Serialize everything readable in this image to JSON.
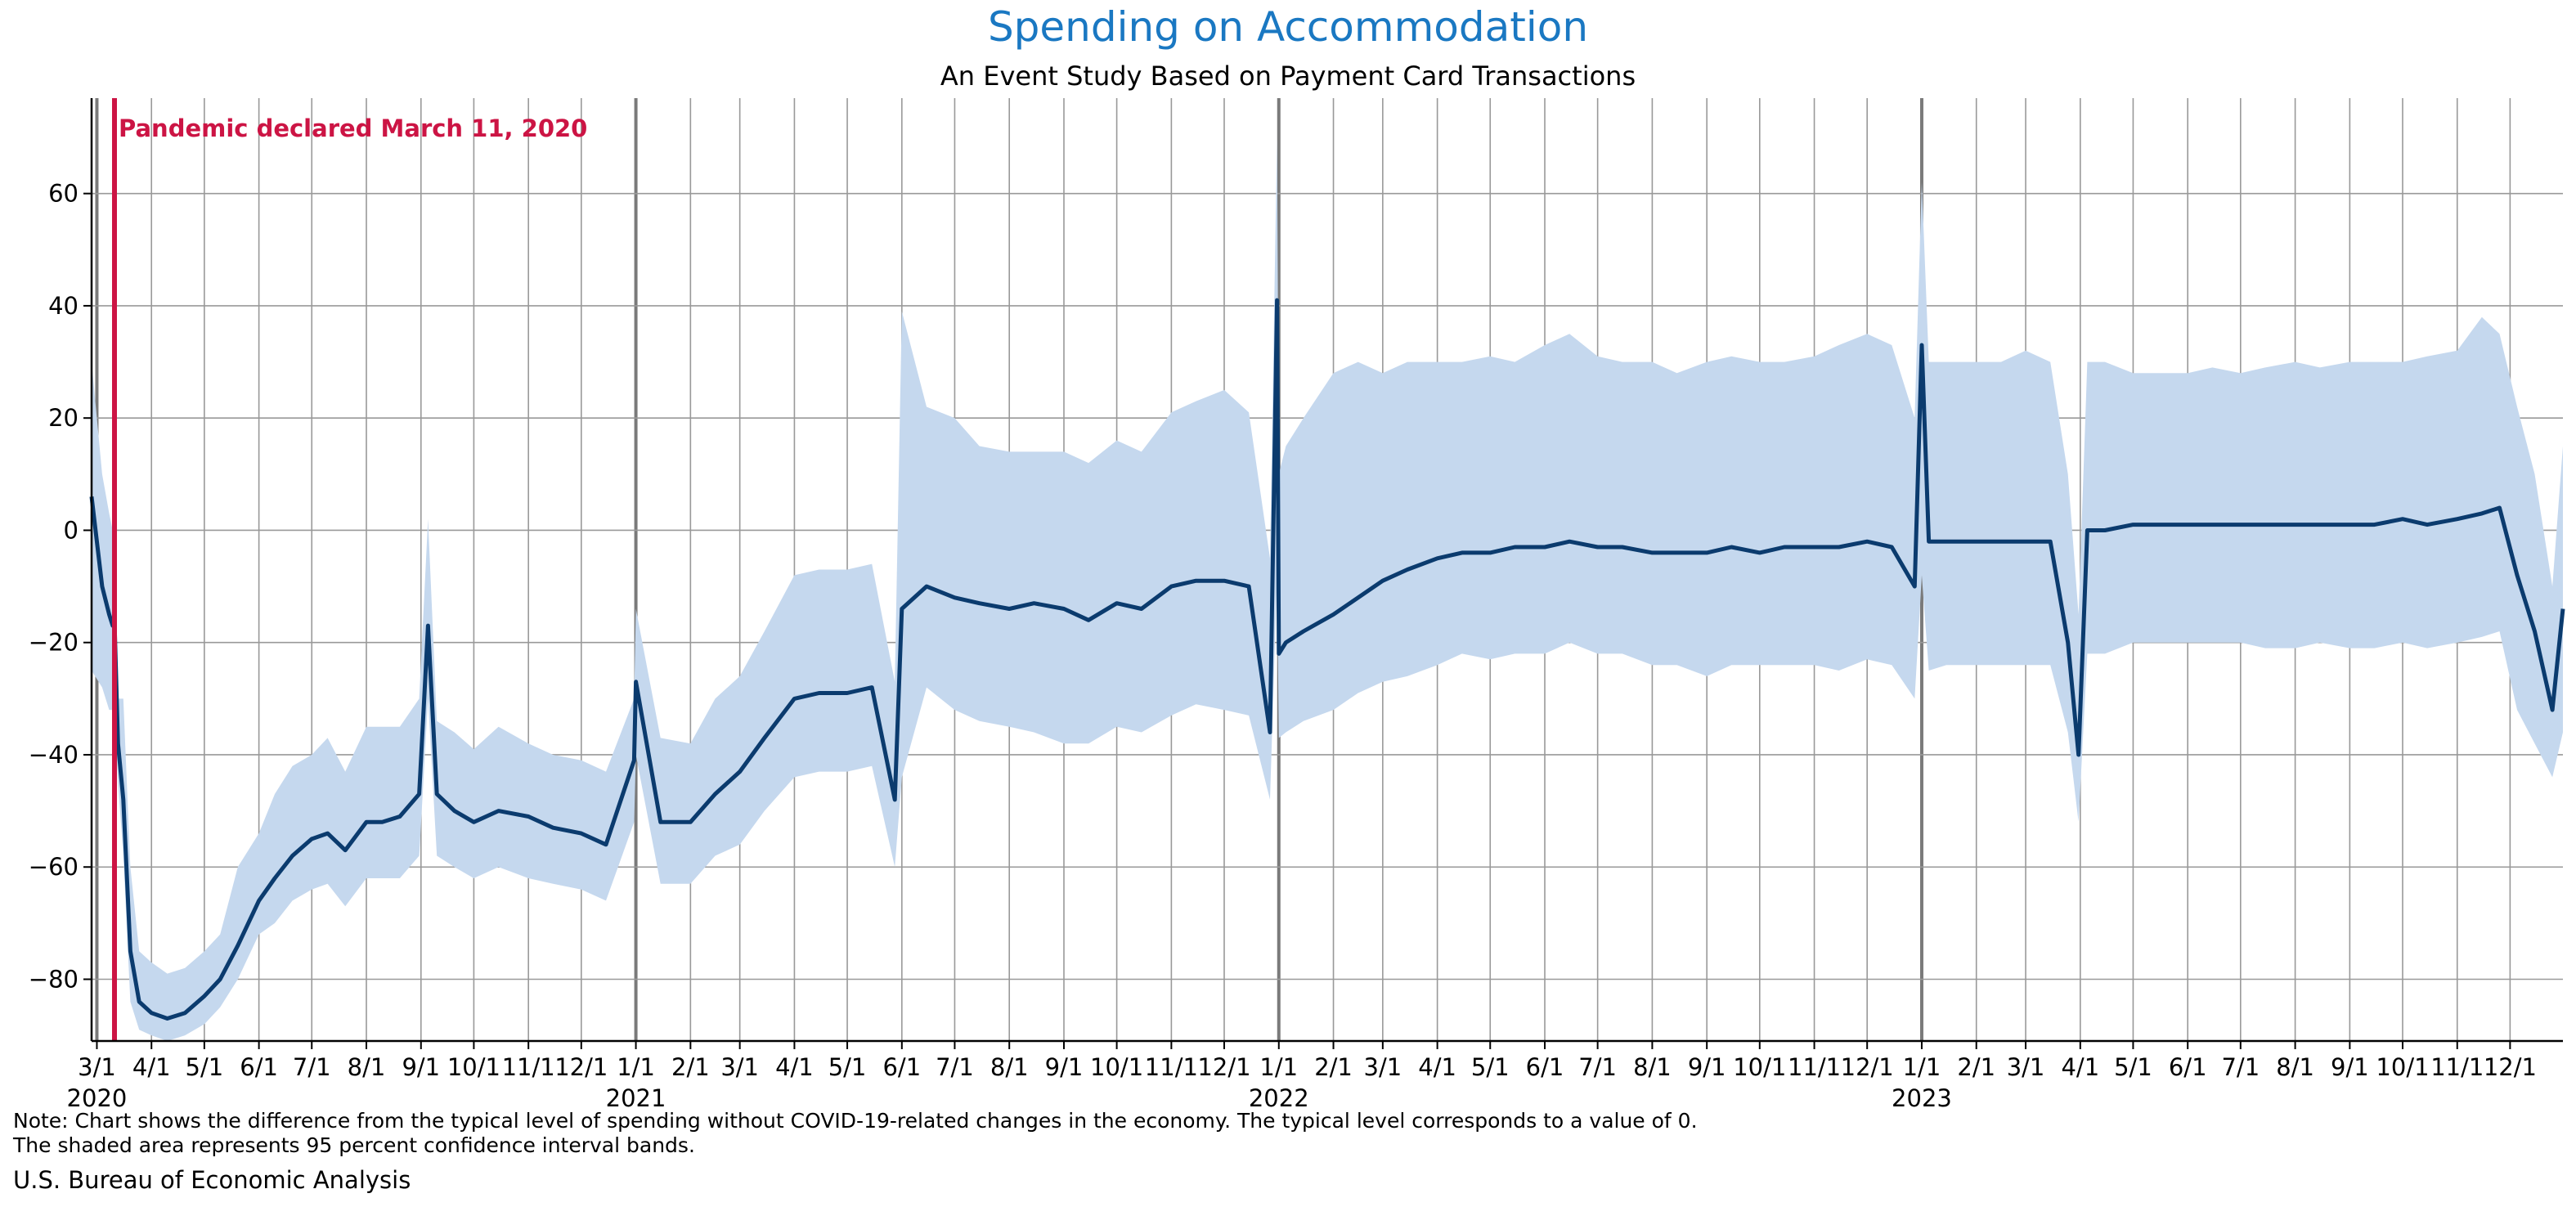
{
  "title": "Spending on Accommodation",
  "subtitle": "An Event Study Based on Payment Card Transactions",
  "note_line1": "Note: Chart shows the difference from the typical level of spending without COVID-19-related changes in the economy. The typical level corresponds to a value of 0.",
  "note_line2": "The shaded area represents 95 percent confidence interval bands.",
  "source": "U.S. Bureau of Economic Analysis",
  "colors": {
    "title": "#1a78c2",
    "line": "#0b3b6e",
    "band": "#c5d8ee",
    "event": "#cc1444",
    "grid": "#999999",
    "year_grid": "#7a7a7a"
  },
  "chart_data": {
    "type": "line",
    "title": "Spending on Accommodation",
    "subtitle": "An Event Study Based on Payment Card Transactions",
    "xlabel": "",
    "ylabel": "",
    "x_range": [
      "2020-02-27",
      "2023-12-31"
    ],
    "ylim": [
      -91,
      77
    ],
    "yticks": [
      -80,
      -60,
      -40,
      -20,
      0,
      20,
      40,
      60
    ],
    "ytick_labels": [
      "−80",
      "−60",
      "−40",
      "−20",
      "0",
      "20",
      "40",
      "60"
    ],
    "grid": true,
    "annotation": {
      "label": "Pandemic declared March 11, 2020",
      "date": "2020-03-11"
    },
    "month_ticks": [
      "2020-03-01",
      "2020-04-01",
      "2020-05-01",
      "2020-06-01",
      "2020-07-01",
      "2020-08-01",
      "2020-09-01",
      "2020-10-01",
      "2020-11-01",
      "2020-12-01",
      "2021-01-01",
      "2021-02-01",
      "2021-03-01",
      "2021-04-01",
      "2021-05-01",
      "2021-06-01",
      "2021-07-01",
      "2021-08-01",
      "2021-09-01",
      "2021-10-01",
      "2021-11-01",
      "2021-12-01",
      "2022-01-01",
      "2022-02-01",
      "2022-03-01",
      "2022-04-01",
      "2022-05-01",
      "2022-06-01",
      "2022-07-01",
      "2022-08-01",
      "2022-09-01",
      "2022-10-01",
      "2022-11-01",
      "2022-12-01",
      "2023-01-01",
      "2023-02-01",
      "2023-03-01",
      "2023-04-01",
      "2023-05-01",
      "2023-06-01",
      "2023-07-01",
      "2023-08-01",
      "2023-09-01",
      "2023-10-01",
      "2023-11-01",
      "2023-12-01"
    ],
    "month_labels": [
      "3/1",
      "4/1",
      "5/1",
      "6/1",
      "7/1",
      "8/1",
      "9/1",
      "10/1",
      "11/1",
      "12/1",
      "1/1",
      "2/1",
      "3/1",
      "4/1",
      "5/1",
      "6/1",
      "7/1",
      "8/1",
      "9/1",
      "10/1",
      "11/1",
      "12/1",
      "1/1",
      "2/1",
      "3/1",
      "4/1",
      "5/1",
      "6/1",
      "7/1",
      "8/1",
      "9/1",
      "10/1",
      "11/1",
      "12/1",
      "1/1",
      "2/1",
      "3/1",
      "4/1",
      "5/1",
      "6/1",
      "7/1",
      "8/1",
      "9/1",
      "10/1",
      "11/1",
      "12/1"
    ],
    "year_ticks": [
      "2020-03-01",
      "2021-01-01",
      "2022-01-01",
      "2023-01-01"
    ],
    "year_labels": [
      "2020",
      "2021",
      "2022",
      "2023"
    ],
    "series": [
      {
        "legend": "",
        "note": "Daily values approximated; the band's upper and lower bounds are the 95 percent confidence interval.",
        "x": [
          "2020-02-27",
          "2020-03-04",
          "2020-03-08",
          "2020-03-10",
          "2020-03-11",
          "2020-03-13",
          "2020-03-16",
          "2020-03-20",
          "2020-03-25",
          "2020-04-01",
          "2020-04-10",
          "2020-04-20",
          "2020-05-01",
          "2020-05-10",
          "2020-05-20",
          "2020-06-01",
          "2020-06-10",
          "2020-06-20",
          "2020-07-01",
          "2020-07-10",
          "2020-07-20",
          "2020-08-01",
          "2020-08-10",
          "2020-08-20",
          "2020-08-31",
          "2020-09-05",
          "2020-09-10",
          "2020-09-20",
          "2020-10-01",
          "2020-10-15",
          "2020-11-01",
          "2020-11-15",
          "2020-12-01",
          "2020-12-15",
          "2020-12-31",
          "2021-01-01",
          "2021-01-15",
          "2021-02-01",
          "2021-02-15",
          "2021-03-01",
          "2021-03-15",
          "2021-04-01",
          "2021-04-15",
          "2021-05-01",
          "2021-05-15",
          "2021-05-28",
          "2021-06-01",
          "2021-06-15",
          "2021-07-01",
          "2021-07-15",
          "2021-08-01",
          "2021-08-15",
          "2021-09-01",
          "2021-09-15",
          "2021-10-01",
          "2021-10-15",
          "2021-11-01",
          "2021-11-15",
          "2021-12-01",
          "2021-12-15",
          "2021-12-27",
          "2021-12-31",
          "2022-01-01",
          "2022-01-05",
          "2022-01-15",
          "2022-02-01",
          "2022-02-15",
          "2022-03-01",
          "2022-03-15",
          "2022-04-01",
          "2022-04-15",
          "2022-05-01",
          "2022-05-15",
          "2022-06-01",
          "2022-06-15",
          "2022-07-01",
          "2022-07-15",
          "2022-08-01",
          "2022-08-15",
          "2022-09-01",
          "2022-09-15",
          "2022-10-01",
          "2022-10-15",
          "2022-11-01",
          "2022-11-15",
          "2022-12-01",
          "2022-12-15",
          "2022-12-28",
          "2023-01-01",
          "2023-01-05",
          "2023-01-15",
          "2023-02-01",
          "2023-02-15",
          "2023-03-01",
          "2023-03-15",
          "2023-03-25",
          "2023-03-31",
          "2023-04-05",
          "2023-04-15",
          "2023-05-01",
          "2023-05-15",
          "2023-06-01",
          "2023-06-15",
          "2023-07-01",
          "2023-07-15",
          "2023-08-01",
          "2023-08-15",
          "2023-09-01",
          "2023-09-15",
          "2023-10-01",
          "2023-10-15",
          "2023-11-01",
          "2023-11-15",
          "2023-11-25",
          "2023-12-05",
          "2023-12-15",
          "2023-12-25",
          "2023-12-31"
        ],
        "y": [
          6,
          -10,
          -15,
          -17,
          -16,
          -38,
          -48,
          -75,
          -84,
          -86,
          -87,
          -86,
          -83,
          -80,
          -74,
          -66,
          -62,
          -58,
          -55,
          -54,
          -57,
          -52,
          -52,
          -51,
          -47,
          -17,
          -47,
          -50,
          -52,
          -50,
          -51,
          -53,
          -54,
          -56,
          -41,
          -27,
          -52,
          -52,
          -47,
          -43,
          -37,
          -30,
          -29,
          -29,
          -28,
          -48,
          -14,
          -10,
          -12,
          -13,
          -14,
          -13,
          -14,
          -16,
          -13,
          -14,
          -10,
          -9,
          -9,
          -10,
          -36,
          41,
          -22,
          -20,
          -18,
          -15,
          -12,
          -9,
          -7,
          -5,
          -4,
          -4,
          -3,
          -3,
          -2,
          -3,
          -3,
          -4,
          -4,
          -4,
          -3,
          -4,
          -3,
          -3,
          -3,
          -2,
          -3,
          -10,
          33,
          -2,
          -2,
          -2,
          -2,
          -2,
          -2,
          -20,
          -40,
          0,
          0,
          1,
          1,
          1,
          1,
          1,
          1,
          1,
          1,
          1,
          1,
          2,
          1,
          2,
          3,
          4,
          -8,
          -18,
          -32,
          -14
        ],
        "upper": [
          30,
          10,
          3,
          0,
          0,
          -30,
          -30,
          -60,
          -75,
          -77,
          -79,
          -78,
          -75,
          -72,
          -60,
          -54,
          -47,
          -42,
          -40,
          -37,
          -43,
          -35,
          -35,
          -35,
          -30,
          2,
          -34,
          -36,
          -39,
          -35,
          -38,
          -40,
          -41,
          -43,
          -30,
          -14,
          -37,
          -38,
          -30,
          -26,
          -18,
          -8,
          -7,
          -7,
          -6,
          -27,
          39,
          22,
          20,
          15,
          14,
          14,
          14,
          12,
          16,
          14,
          21,
          23,
          25,
          21,
          -5,
          70,
          10,
          15,
          20,
          28,
          30,
          28,
          30,
          30,
          30,
          31,
          30,
          33,
          35,
          31,
          30,
          30,
          28,
          30,
          31,
          30,
          30,
          31,
          33,
          35,
          33,
          20,
          62,
          30,
          30,
          30,
          30,
          32,
          30,
          10,
          -15,
          30,
          30,
          28,
          28,
          28,
          29,
          28,
          29,
          30,
          29,
          30,
          30,
          30,
          31,
          32,
          38,
          35,
          22,
          10,
          -10,
          15
        ],
        "lower": [
          -25,
          -28,
          -32,
          -32,
          -31,
          -45,
          -58,
          -84,
          -89,
          -90,
          -91,
          -90,
          -88,
          -85,
          -80,
          -72,
          -70,
          -66,
          -64,
          -63,
          -67,
          -62,
          -62,
          -62,
          -58,
          -30,
          -58,
          -60,
          -62,
          -60,
          -62,
          -63,
          -64,
          -66,
          -52,
          -40,
          -63,
          -63,
          -58,
          -56,
          -50,
          -44,
          -43,
          -43,
          -42,
          -60,
          -44,
          -28,
          -32,
          -34,
          -35,
          -36,
          -38,
          -38,
          -35,
          -36,
          -33,
          -31,
          -32,
          -33,
          -48,
          -8,
          -37,
          -36,
          -34,
          -32,
          -29,
          -27,
          -26,
          -24,
          -22,
          -23,
          -22,
          -22,
          -20,
          -22,
          -22,
          -24,
          -24,
          -26,
          -24,
          -24,
          -24,
          -24,
          -25,
          -23,
          -24,
          -30,
          -8,
          -25,
          -24,
          -24,
          -24,
          -24,
          -24,
          -36,
          -52,
          -22,
          -22,
          -20,
          -20,
          -20,
          -20,
          -20,
          -21,
          -21,
          -20,
          -21,
          -21,
          -20,
          -21,
          -20,
          -19,
          -18,
          -32,
          -38,
          -44,
          -36
        ]
      }
    ]
  }
}
